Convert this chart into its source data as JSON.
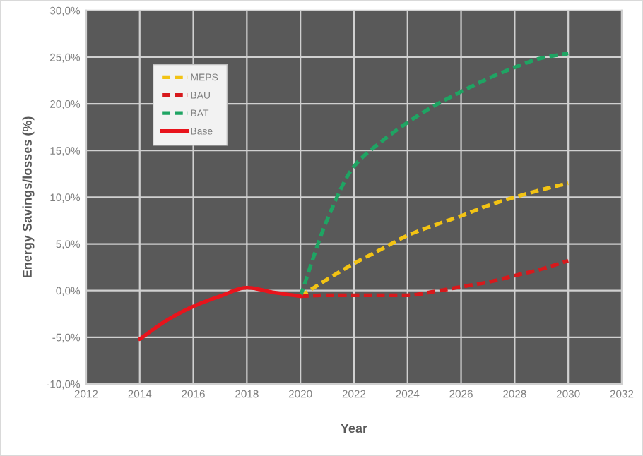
{
  "chart_data": {
    "type": "line",
    "xlabel": "Year",
    "ylabel": "Energy Savings/losses (%)",
    "xlim": [
      2012,
      2032
    ],
    "xticks": [
      2012,
      2014,
      2016,
      2018,
      2020,
      2022,
      2024,
      2026,
      2028,
      2030,
      2032
    ],
    "ylim": [
      -10,
      30
    ],
    "yticks": [
      {
        "value": -10,
        "label": "-10,0%"
      },
      {
        "value": -5,
        "label": "-5,0%"
      },
      {
        "value": 0,
        "label": "0,0%"
      },
      {
        "value": 5,
        "label": "5,0%"
      },
      {
        "value": 10,
        "label": "10,0%"
      },
      {
        "value": 15,
        "label": "15,0%"
      },
      {
        "value": 20,
        "label": "20,0%"
      },
      {
        "value": 25,
        "label": "25,0%"
      },
      {
        "value": 30,
        "label": "30,0%"
      }
    ],
    "grid": true,
    "legend": "top left",
    "series": [
      {
        "name": "MEPS",
        "color": "#f2c314",
        "line_style": "dashed",
        "x": [
          2020,
          2021,
          2022,
          2023,
          2024,
          2025,
          2026,
          2027,
          2028,
          2029,
          2030
        ],
        "values": [
          -0.6,
          1.2,
          2.9,
          4.4,
          5.9,
          7.0,
          8.0,
          9.1,
          10.0,
          10.8,
          11.5
        ]
      },
      {
        "name": "BAU",
        "color": "#d7191c",
        "line_style": "dashed",
        "x": [
          2020,
          2021,
          2022,
          2023,
          2024,
          2025,
          2026,
          2027,
          2028,
          2029,
          2030
        ],
        "values": [
          -0.6,
          -0.5,
          -0.5,
          -0.5,
          -0.5,
          -0.1,
          0.4,
          0.9,
          1.6,
          2.3,
          3.2
        ]
      },
      {
        "name": "BAT",
        "color": "#1fa463",
        "line_style": "dashed",
        "x": [
          2020,
          2021,
          2022,
          2023,
          2024,
          2025,
          2026,
          2027,
          2028,
          2029,
          2030
        ],
        "values": [
          -0.6,
          7.6,
          13.3,
          15.9,
          18.0,
          19.8,
          21.3,
          22.7,
          23.9,
          24.9,
          25.4
        ]
      },
      {
        "name": "Base",
        "color": "#e8141c",
        "line_style": "solid",
        "x": [
          2014,
          2015,
          2016,
          2017,
          2018,
          2019,
          2020
        ],
        "values": [
          -5.2,
          -3.2,
          -1.7,
          -0.6,
          0.3,
          -0.2,
          -0.6
        ]
      }
    ]
  }
}
